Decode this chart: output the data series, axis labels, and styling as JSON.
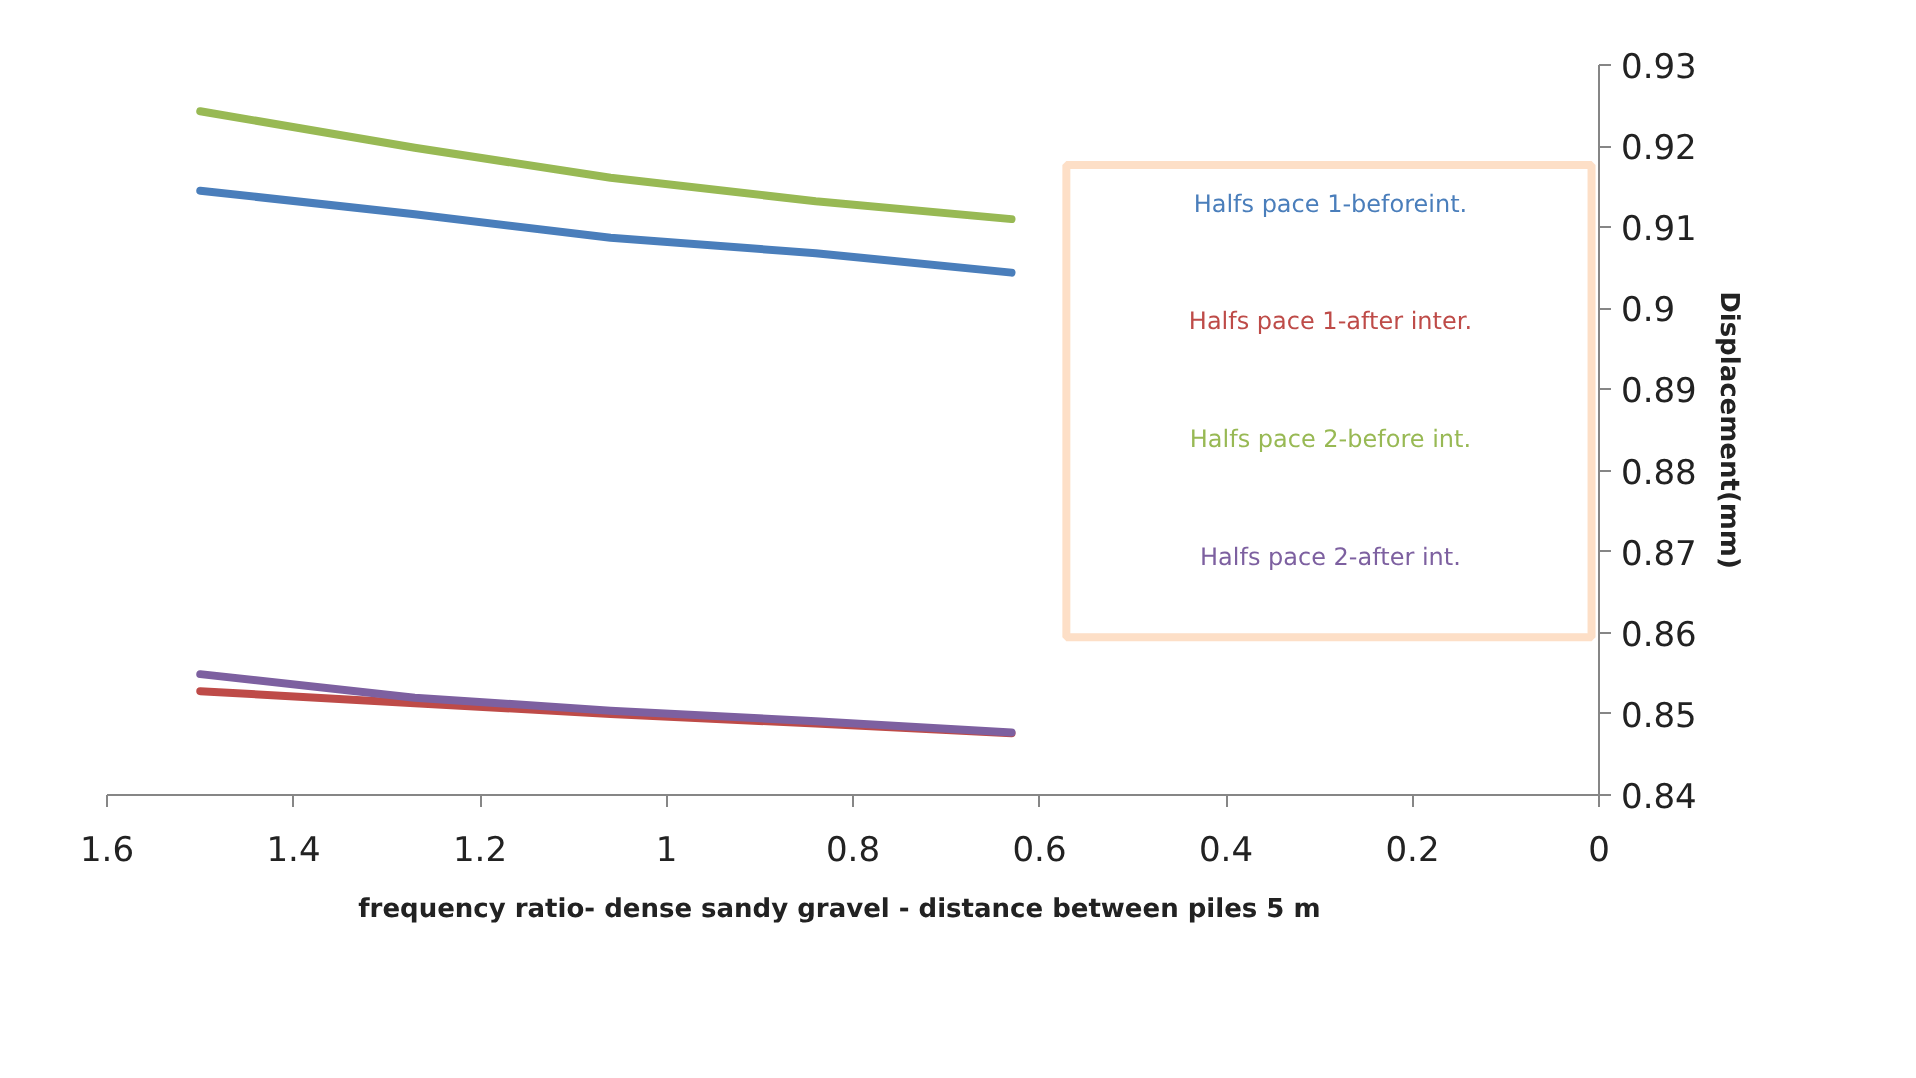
{
  "chart_data": {
    "type": "line",
    "xlabel": "frequency ratio-  dense sandy  gravel - distance  between piles 5 m",
    "ylabel": "Displacement(mm)",
    "x": [
      1.5,
      1.27,
      1.06,
      0.84,
      0.63
    ],
    "series": [
      {
        "name": "Halfs pace 1-beforeint.",
        "color": "#4a7ebb",
        "values": [
          0.9145,
          0.9116,
          0.9087,
          0.9068,
          0.9044
        ]
      },
      {
        "name": "Halfs pace 1-after inter.",
        "color": "#be4b48",
        "values": [
          0.8528,
          0.8513,
          0.85,
          0.8488,
          0.8476
        ]
      },
      {
        "name": "Halfs pace 2-before int.",
        "color": "#98b954",
        "values": [
          0.9243,
          0.9198,
          0.9161,
          0.9132,
          0.911
        ]
      },
      {
        "name": "Halfs pace 2-after int.",
        "color": "#7d60a0",
        "values": [
          0.8549,
          0.852,
          0.8504,
          0.8491,
          0.8477
        ]
      }
    ],
    "xlim": [
      1.6,
      0
    ],
    "xticks": [
      1.6,
      1.4,
      1.2,
      1,
      0.8,
      0.6,
      0.4,
      0.2,
      0
    ],
    "ylim": [
      0.84,
      0.93
    ],
    "yticks": [
      0.84,
      0.85,
      0.86,
      0.87,
      0.88,
      0.89,
      0.9,
      0.91,
      0.92,
      0.93
    ],
    "grid": false,
    "marker": "none",
    "line_style": "solid"
  }
}
